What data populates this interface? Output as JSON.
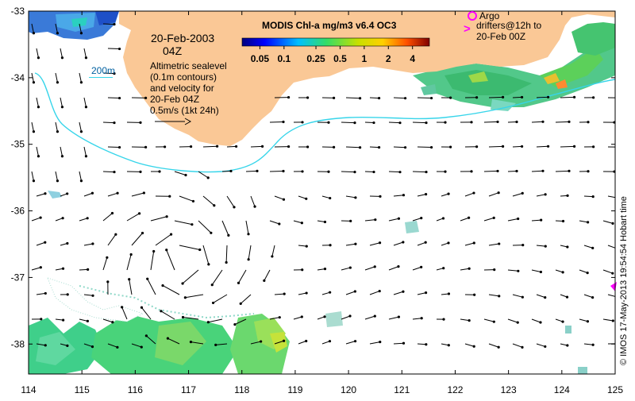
{
  "title": "MODIS Chl-a mg/m3 v6.4 OC3",
  "date_line1": "20-Feb-2003",
  "date_line2": "04Z",
  "contour_label": "200m",
  "legend_text": [
    "Altimetric sealevel",
    "(0.1m contours)",
    "and velocity for",
    "20-Feb 04Z",
    "0.5m/s (1kt 24h)"
  ],
  "colorbar_ticks": [
    "0.05",
    "0.1",
    "0.25",
    "0.5",
    "1",
    "2",
    "4"
  ],
  "colorbar_tick_values": [
    0.05,
    0.1,
    0.25,
    0.5,
    1,
    2,
    4
  ],
  "colorbar_range": [
    0.03,
    6.5
  ],
  "argo_label": "Argo",
  "drifters_label1": "drifters@12h to",
  "drifters_label2": "20-Feb 00Z",
  "x_ticks": [
    "114",
    "115",
    "116",
    "117",
    "118",
    "119",
    "120",
    "121",
    "122",
    "123",
    "124",
    "125"
  ],
  "y_ticks": [
    "-33",
    "-34",
    "-35",
    "-36",
    "-37",
    "-38"
  ],
  "lon_range": [
    114,
    125
  ],
  "lat_range": [
    -33,
    -38.45
  ],
  "credit": "© IMOS 17-May-2013 19:54:54 Hobart time",
  "colors": {
    "land": "#fac896",
    "contour": "#37d5ea",
    "argo": "#ff00ff",
    "axis": "#000000"
  }
}
